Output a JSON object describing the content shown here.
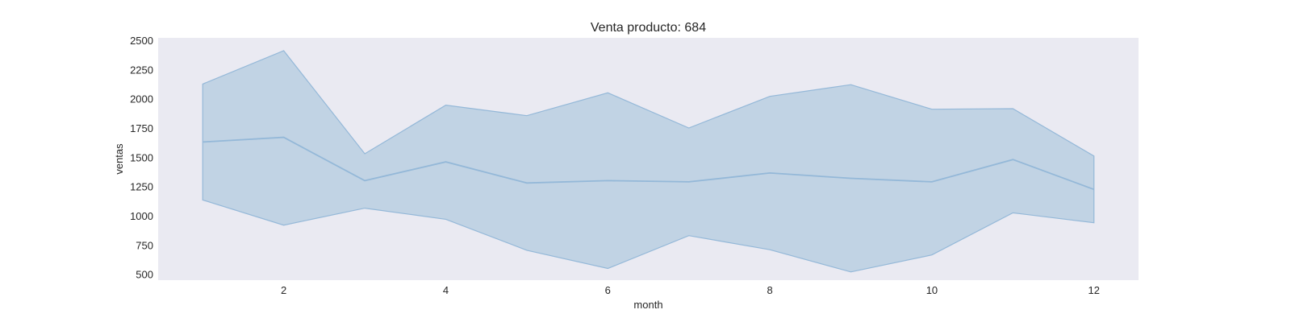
{
  "chart_data": {
    "type": "area",
    "title": "Venta producto: 684",
    "xlabel": "month",
    "ylabel": "ventas",
    "xlim": [
      0.45,
      12.55
    ],
    "ylim": [
      450,
      2520
    ],
    "xticks": [
      2,
      4,
      6,
      8,
      10,
      12
    ],
    "yticks": [
      500,
      750,
      1000,
      1250,
      1500,
      1750,
      2000,
      2250,
      2500
    ],
    "grid": false,
    "background": "#eaeaf2",
    "colors": {
      "line": "#94b8d8",
      "band": "#c1d3e4"
    },
    "series": [
      {
        "x": [
          1,
          2,
          3,
          4,
          5,
          6,
          7,
          8,
          9,
          10,
          11,
          12
        ],
        "mean": [
          1630,
          1670,
          1300,
          1460,
          1280,
          1300,
          1290,
          1365,
          1320,
          1290,
          1480,
          1225
        ],
        "upper": [
          2125,
          2410,
          1530,
          1945,
          1855,
          2050,
          1750,
          2020,
          2120,
          1910,
          1915,
          1510
        ],
        "lower": [
          1135,
          920,
          1065,
          970,
          705,
          550,
          830,
          710,
          520,
          665,
          1025,
          940
        ]
      }
    ]
  }
}
